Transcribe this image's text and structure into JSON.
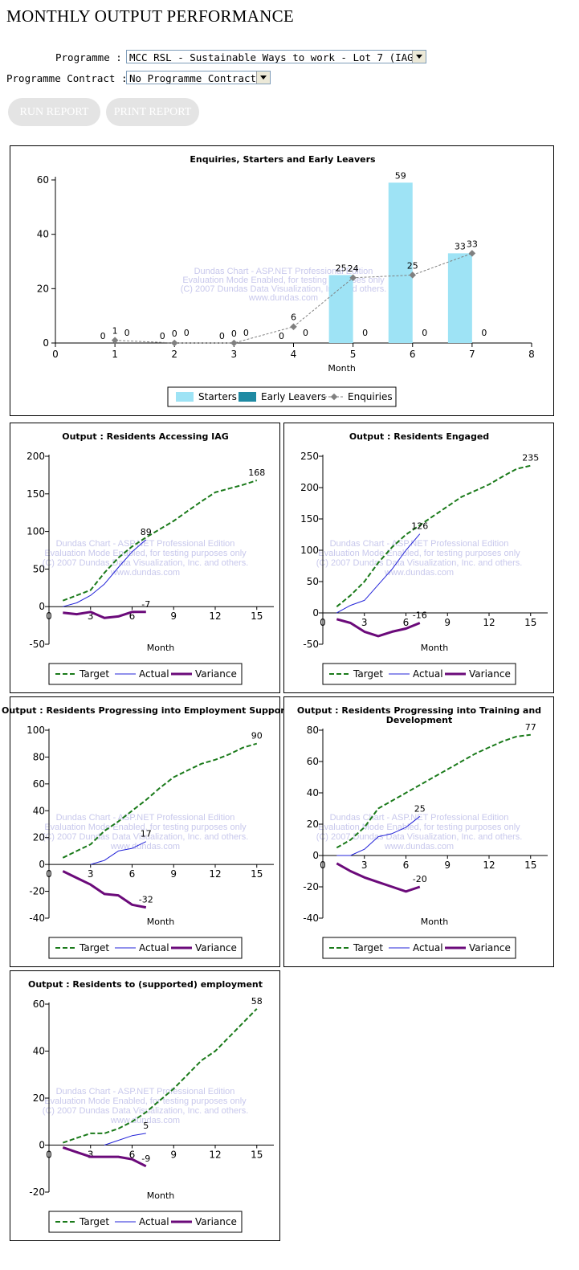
{
  "page": {
    "title": "MONTHLY OUTPUT PERFORMANCE"
  },
  "form": {
    "programme_label": "Programme :",
    "programme_value": "MCC RSL - Sustainable Ways to work - Lot 7 (IAG)",
    "contract_label": "Programme Contract :",
    "contract_value": "No Programme Contract",
    "run_label": "RUN REPORT",
    "print_label": "PRINT REPORT"
  },
  "watermark": [
    "Dundas Chart - ASP.NET Professional Edition",
    "Evaluation Mode Enabled, for testing purposes only",
    "(C) 2007 Dundas Data Visualization, Inc. and others.",
    "www.dundas.com"
  ],
  "colors": {
    "starters": "#9ee3f5",
    "early_leavers": "#1f8aa3",
    "enquiries": "#808080",
    "target": "#1a7a1a",
    "actual": "#2323d8",
    "variance": "#6b0a7a"
  },
  "chart_data": [
    {
      "type": "bar",
      "title": "Enquiries, Starters and Early Leavers",
      "xlabel": "Month",
      "ylabel": "",
      "xlim": [
        0,
        8
      ],
      "ylim": [
        0,
        60
      ],
      "xticks": [
        "0",
        "1",
        "2",
        "3",
        "4",
        "5",
        "6",
        "7",
        "8"
      ],
      "yticks": [
        "0",
        "20",
        "40",
        "60"
      ],
      "categories": [
        1,
        2,
        3,
        4,
        5,
        6,
        7
      ],
      "series": [
        {
          "name": "Starters",
          "kind": "bar",
          "values": [
            0,
            0,
            0,
            0,
            25,
            59,
            33
          ]
        },
        {
          "name": "Early Leavers",
          "kind": "bar",
          "values": [
            0,
            0,
            0,
            0,
            0,
            0,
            0
          ]
        },
        {
          "name": "Enquiries",
          "kind": "line",
          "values": [
            1,
            0,
            0,
            6,
            24,
            25,
            33
          ]
        }
      ],
      "legend": [
        "Starters",
        "Early Leavers",
        "Enquiries"
      ],
      "legend_position": "bottom"
    },
    {
      "type": "line",
      "title": "Output : Residents Accessing IAG",
      "xlabel": "Month",
      "xlim": [
        0,
        16
      ],
      "ylim": [
        -50,
        200
      ],
      "xticks": [
        "0",
        "3",
        "6",
        "9",
        "12",
        "15"
      ],
      "yticks": [
        "-50",
        "0",
        "50",
        "100",
        "150",
        "200"
      ],
      "series": [
        {
          "name": "Target",
          "x": [
            1,
            2,
            3,
            4,
            5,
            6,
            7,
            8,
            9,
            10,
            11,
            12,
            13,
            14,
            15
          ],
          "y": [
            8,
            15,
            22,
            45,
            65,
            80,
            92,
            103,
            114,
            127,
            140,
            152,
            157,
            162,
            168
          ]
        },
        {
          "name": "Actual",
          "x": [
            1,
            2,
            3,
            4,
            5,
            6,
            7
          ],
          "y": [
            0,
            5,
            15,
            30,
            52,
            73,
            89
          ]
        },
        {
          "name": "Variance",
          "x": [
            1,
            2,
            3,
            4,
            5,
            6,
            7
          ],
          "y": [
            -8,
            -10,
            -7,
            -15,
            -13,
            -7,
            -7
          ]
        }
      ],
      "data_labels": [
        {
          "text": "168",
          "x": 15,
          "y": 168
        },
        {
          "text": "89",
          "x": 7,
          "y": 89
        },
        {
          "text": "-7",
          "x": 7,
          "y": -7
        }
      ],
      "legend": [
        "Target",
        "Actual",
        "Variance"
      ]
    },
    {
      "type": "line",
      "title": "Output : Residents Engaged",
      "xlabel": "Month",
      "xlim": [
        0,
        16
      ],
      "ylim": [
        -50,
        250
      ],
      "xticks": [
        "0",
        "3",
        "6",
        "9",
        "12",
        "15"
      ],
      "yticks": [
        "-50",
        "0",
        "50",
        "100",
        "150",
        "200",
        "250"
      ],
      "series": [
        {
          "name": "Target",
          "x": [
            1,
            2,
            3,
            4,
            5,
            6,
            7,
            8,
            9,
            10,
            11,
            12,
            13,
            14,
            15
          ],
          "y": [
            10,
            28,
            50,
            80,
            105,
            125,
            140,
            155,
            170,
            185,
            195,
            205,
            218,
            230,
            235
          ]
        },
        {
          "name": "Actual",
          "x": [
            1,
            2,
            3,
            4,
            5,
            6,
            7
          ],
          "y": [
            0,
            12,
            20,
            45,
            70,
            100,
            126
          ]
        },
        {
          "name": "Variance",
          "x": [
            1,
            2,
            3,
            4,
            5,
            6,
            7
          ],
          "y": [
            -10,
            -16,
            -30,
            -37,
            -30,
            -25,
            -16
          ]
        }
      ],
      "data_labels": [
        {
          "text": "235",
          "x": 15,
          "y": 235
        },
        {
          "text": "126",
          "x": 7,
          "y": 126
        },
        {
          "text": "-16",
          "x": 7,
          "y": -16
        }
      ],
      "legend": [
        "Target",
        "Actual",
        "Variance"
      ]
    },
    {
      "type": "line",
      "title": "Output : Residents Progressing into Employment Support",
      "xlabel": "Month",
      "xlim": [
        0,
        16
      ],
      "ylim": [
        -40,
        100
      ],
      "xticks": [
        "0",
        "3",
        "6",
        "9",
        "12",
        "15"
      ],
      "yticks": [
        "-40",
        "-20",
        "0",
        "20",
        "40",
        "60",
        "80",
        "100"
      ],
      "series": [
        {
          "name": "Target",
          "x": [
            1,
            2,
            3,
            4,
            5,
            6,
            7,
            8,
            9,
            10,
            11,
            12,
            13,
            14,
            15
          ],
          "y": [
            5,
            10,
            15,
            25,
            32,
            40,
            48,
            57,
            65,
            70,
            75,
            78,
            82,
            87,
            90
          ]
        },
        {
          "name": "Actual",
          "x": [
            3,
            4,
            5,
            6,
            7
          ],
          "y": [
            0,
            3,
            10,
            12,
            17
          ]
        },
        {
          "name": "Variance",
          "x": [
            1,
            2,
            3,
            4,
            5,
            6,
            7
          ],
          "y": [
            -5,
            -10,
            -15,
            -22,
            -23,
            -30,
            -32
          ]
        }
      ],
      "data_labels": [
        {
          "text": "90",
          "x": 15,
          "y": 90
        },
        {
          "text": "17",
          "x": 7,
          "y": 17
        },
        {
          "text": "-32",
          "x": 7,
          "y": -32
        }
      ],
      "legend": [
        "Target",
        "Actual",
        "Variance"
      ]
    },
    {
      "type": "line",
      "title": "Output : Residents Progressing into Training and Development",
      "title_lines": [
        "Output : Residents Progressing into Training and",
        "Development"
      ],
      "xlabel": "Month",
      "xlim": [
        0,
        16
      ],
      "ylim": [
        -40,
        80
      ],
      "xticks": [
        "0",
        "3",
        "6",
        "9",
        "12",
        "15"
      ],
      "yticks": [
        "-40",
        "-20",
        "0",
        "20",
        "40",
        "60",
        "80"
      ],
      "series": [
        {
          "name": "Target",
          "x": [
            1,
            2,
            3,
            4,
            5,
            6,
            7,
            8,
            9,
            10,
            11,
            12,
            13,
            14,
            15
          ],
          "y": [
            5,
            10,
            18,
            30,
            35,
            40,
            45,
            50,
            55,
            60,
            65,
            69,
            73,
            76,
            77
          ]
        },
        {
          "name": "Actual",
          "x": [
            1,
            2,
            3,
            4,
            5,
            6,
            7
          ],
          "y": [
            0,
            0,
            4,
            12,
            14,
            18,
            25
          ]
        },
        {
          "name": "Variance",
          "x": [
            1,
            2,
            3,
            4,
            5,
            6,
            7
          ],
          "y": [
            -5,
            -10,
            -14,
            -17,
            -20,
            -23,
            -20
          ]
        }
      ],
      "data_labels": [
        {
          "text": "77",
          "x": 15,
          "y": 77
        },
        {
          "text": "25",
          "x": 7,
          "y": 25
        },
        {
          "text": "-20",
          "x": 7,
          "y": -20
        }
      ],
      "legend": [
        "Target",
        "Actual",
        "Variance"
      ]
    },
    {
      "type": "line",
      "title": "Output : Residents to (supported) employment",
      "xlabel": "Month",
      "xlim": [
        0,
        16
      ],
      "ylim": [
        -20,
        60
      ],
      "xticks": [
        "0",
        "3",
        "6",
        "9",
        "12",
        "15"
      ],
      "yticks": [
        "-20",
        "0",
        "20",
        "40",
        "60"
      ],
      "series": [
        {
          "name": "Target",
          "x": [
            1,
            2,
            3,
            4,
            5,
            6,
            7,
            8,
            9,
            10,
            11,
            12,
            13,
            14,
            15
          ],
          "y": [
            1,
            3,
            5,
            5,
            7,
            10,
            14,
            19,
            24,
            30,
            36,
            40,
            46,
            52,
            58
          ]
        },
        {
          "name": "Actual",
          "x": [
            4,
            5,
            6,
            7
          ],
          "y": [
            0,
            2,
            4,
            5
          ]
        },
        {
          "name": "Variance",
          "x": [
            1,
            2,
            3,
            4,
            5,
            6,
            7
          ],
          "y": [
            -1,
            -3,
            -5,
            -5,
            -5,
            -6,
            -9
          ]
        }
      ],
      "data_labels": [
        {
          "text": "58",
          "x": 15,
          "y": 58
        },
        {
          "text": "5",
          "x": 7,
          "y": 5
        },
        {
          "text": "-9",
          "x": 7,
          "y": -9
        }
      ],
      "legend": [
        "Target",
        "Actual",
        "Variance"
      ]
    }
  ]
}
